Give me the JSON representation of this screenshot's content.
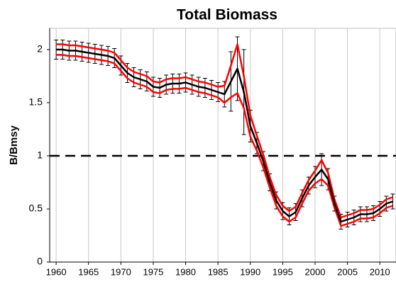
{
  "chart_data": {
    "type": "line",
    "title": "Total Biomass",
    "y_label": "B/Bmsy",
    "x": [
      1960,
      1961,
      1962,
      1963,
      1964,
      1965,
      1966,
      1967,
      1968,
      1969,
      1970,
      1971,
      1972,
      1973,
      1974,
      1975,
      1976,
      1977,
      1978,
      1979,
      1980,
      1981,
      1982,
      1983,
      1984,
      1985,
      1986,
      1987,
      1988,
      1989,
      1990,
      1991,
      1992,
      1993,
      1994,
      1995,
      1996,
      1997,
      1998,
      1999,
      2000,
      2001,
      2002,
      2003,
      2004,
      2005,
      2006,
      2007,
      2008,
      2009,
      2010,
      2011,
      2012
    ],
    "series": [
      {
        "color": "#000000",
        "values": [
          2.0,
          2.0,
          1.99,
          1.99,
          1.98,
          1.97,
          1.96,
          1.95,
          1.94,
          1.92,
          1.85,
          1.78,
          1.74,
          1.72,
          1.7,
          1.65,
          1.64,
          1.67,
          1.68,
          1.68,
          1.69,
          1.67,
          1.65,
          1.64,
          1.62,
          1.6,
          1.58,
          1.7,
          1.82,
          1.6,
          1.28,
          1.12,
          0.95,
          0.75,
          0.58,
          0.48,
          0.43,
          0.47,
          0.6,
          0.72,
          0.8,
          0.87,
          0.78,
          0.55,
          0.38,
          0.4,
          0.42,
          0.45,
          0.45,
          0.46,
          0.5,
          0.55,
          0.57
        ],
        "errors": [
          0.09,
          0.09,
          0.09,
          0.09,
          0.09,
          0.09,
          0.09,
          0.09,
          0.09,
          0.09,
          0.09,
          0.09,
          0.09,
          0.09,
          0.09,
          0.09,
          0.09,
          0.09,
          0.09,
          0.09,
          0.09,
          0.09,
          0.09,
          0.09,
          0.09,
          0.09,
          0.12,
          0.28,
          0.3,
          0.4,
          0.15,
          0.1,
          0.09,
          0.08,
          0.08,
          0.08,
          0.08,
          0.08,
          0.08,
          0.08,
          0.1,
          0.15,
          0.1,
          0.07,
          0.07,
          0.07,
          0.07,
          0.07,
          0.07,
          0.07,
          0.07,
          0.07,
          0.07
        ]
      },
      {
        "color": "#ff0000",
        "values": [
          2.05,
          2.05,
          2.04,
          2.04,
          2.03,
          2.02,
          2.01,
          2.0,
          1.99,
          1.97,
          1.9,
          1.83,
          1.79,
          1.77,
          1.75,
          1.7,
          1.69,
          1.72,
          1.73,
          1.73,
          1.74,
          1.72,
          1.7,
          1.69,
          1.67,
          1.65,
          1.66,
          1.85,
          2.05,
          1.75,
          1.38,
          1.19,
          1.01,
          0.8,
          0.63,
          0.53,
          0.48,
          0.52,
          0.65,
          0.77,
          0.86,
          0.96,
          0.84,
          0.59,
          0.42,
          0.44,
          0.46,
          0.49,
          0.49,
          0.5,
          0.54,
          0.59,
          0.61
        ]
      },
      {
        "color": "#ff0000",
        "values": [
          1.95,
          1.95,
          1.94,
          1.94,
          1.93,
          1.92,
          1.91,
          1.9,
          1.89,
          1.87,
          1.8,
          1.73,
          1.69,
          1.67,
          1.65,
          1.6,
          1.59,
          1.62,
          1.63,
          1.63,
          1.64,
          1.62,
          1.6,
          1.59,
          1.57,
          1.55,
          1.5,
          1.55,
          1.59,
          1.45,
          1.18,
          1.05,
          0.89,
          0.7,
          0.53,
          0.43,
          0.38,
          0.42,
          0.55,
          0.67,
          0.74,
          0.78,
          0.72,
          0.51,
          0.34,
          0.36,
          0.38,
          0.41,
          0.41,
          0.42,
          0.46,
          0.51,
          0.53
        ]
      }
    ],
    "hline": 1,
    "xlim": [
      1959,
      2012.5
    ],
    "xticks": [
      1960,
      1965,
      1970,
      1975,
      1980,
      1985,
      1990,
      1995,
      2000,
      2005,
      2010
    ],
    "ylim": [
      0,
      2.2
    ],
    "yticks": [
      0,
      0.5,
      1,
      1.5,
      2
    ],
    "grid": "x"
  }
}
